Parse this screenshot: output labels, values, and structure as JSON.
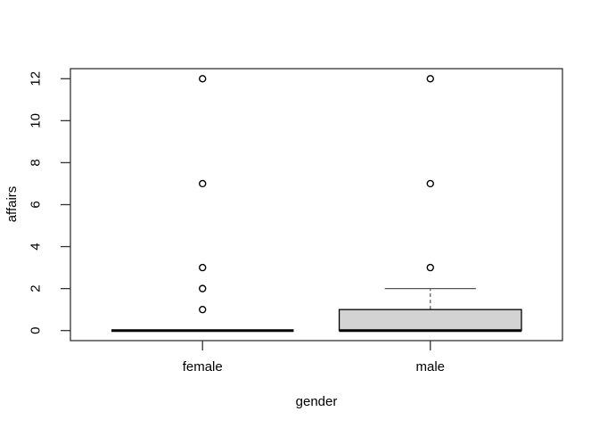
{
  "chart_data": {
    "type": "boxplot",
    "title": "",
    "xlabel": "gender",
    "ylabel": "affairs",
    "categories": [
      "female",
      "male"
    ],
    "y_ticks": [
      0,
      2,
      4,
      6,
      8,
      10,
      12
    ],
    "xlim": [
      0.42,
      2.58
    ],
    "ylim": [
      -0.48,
      12.48
    ],
    "grid": false,
    "legend": "none",
    "series": [
      {
        "name": "female",
        "x": 1,
        "q1": 0,
        "median": 0,
        "q3": 0,
        "whisker_low": 0,
        "whisker_high": 0,
        "outliers": [
          1,
          2,
          3,
          7,
          12
        ]
      },
      {
        "name": "male",
        "x": 2,
        "q1": 0,
        "median": 0,
        "q3": 1,
        "whisker_low": 0,
        "whisker_high": 2,
        "outliers": [
          3,
          7,
          12
        ]
      }
    ],
    "styles": {
      "background": "#ffffff",
      "box_fill": "#d3d3d3",
      "box_stroke": "#000000",
      "median_color": "#000000",
      "whisker_color": "#555555",
      "outlier_color": "#000000",
      "axis_color": "#333333",
      "text_color": "#000000"
    }
  }
}
